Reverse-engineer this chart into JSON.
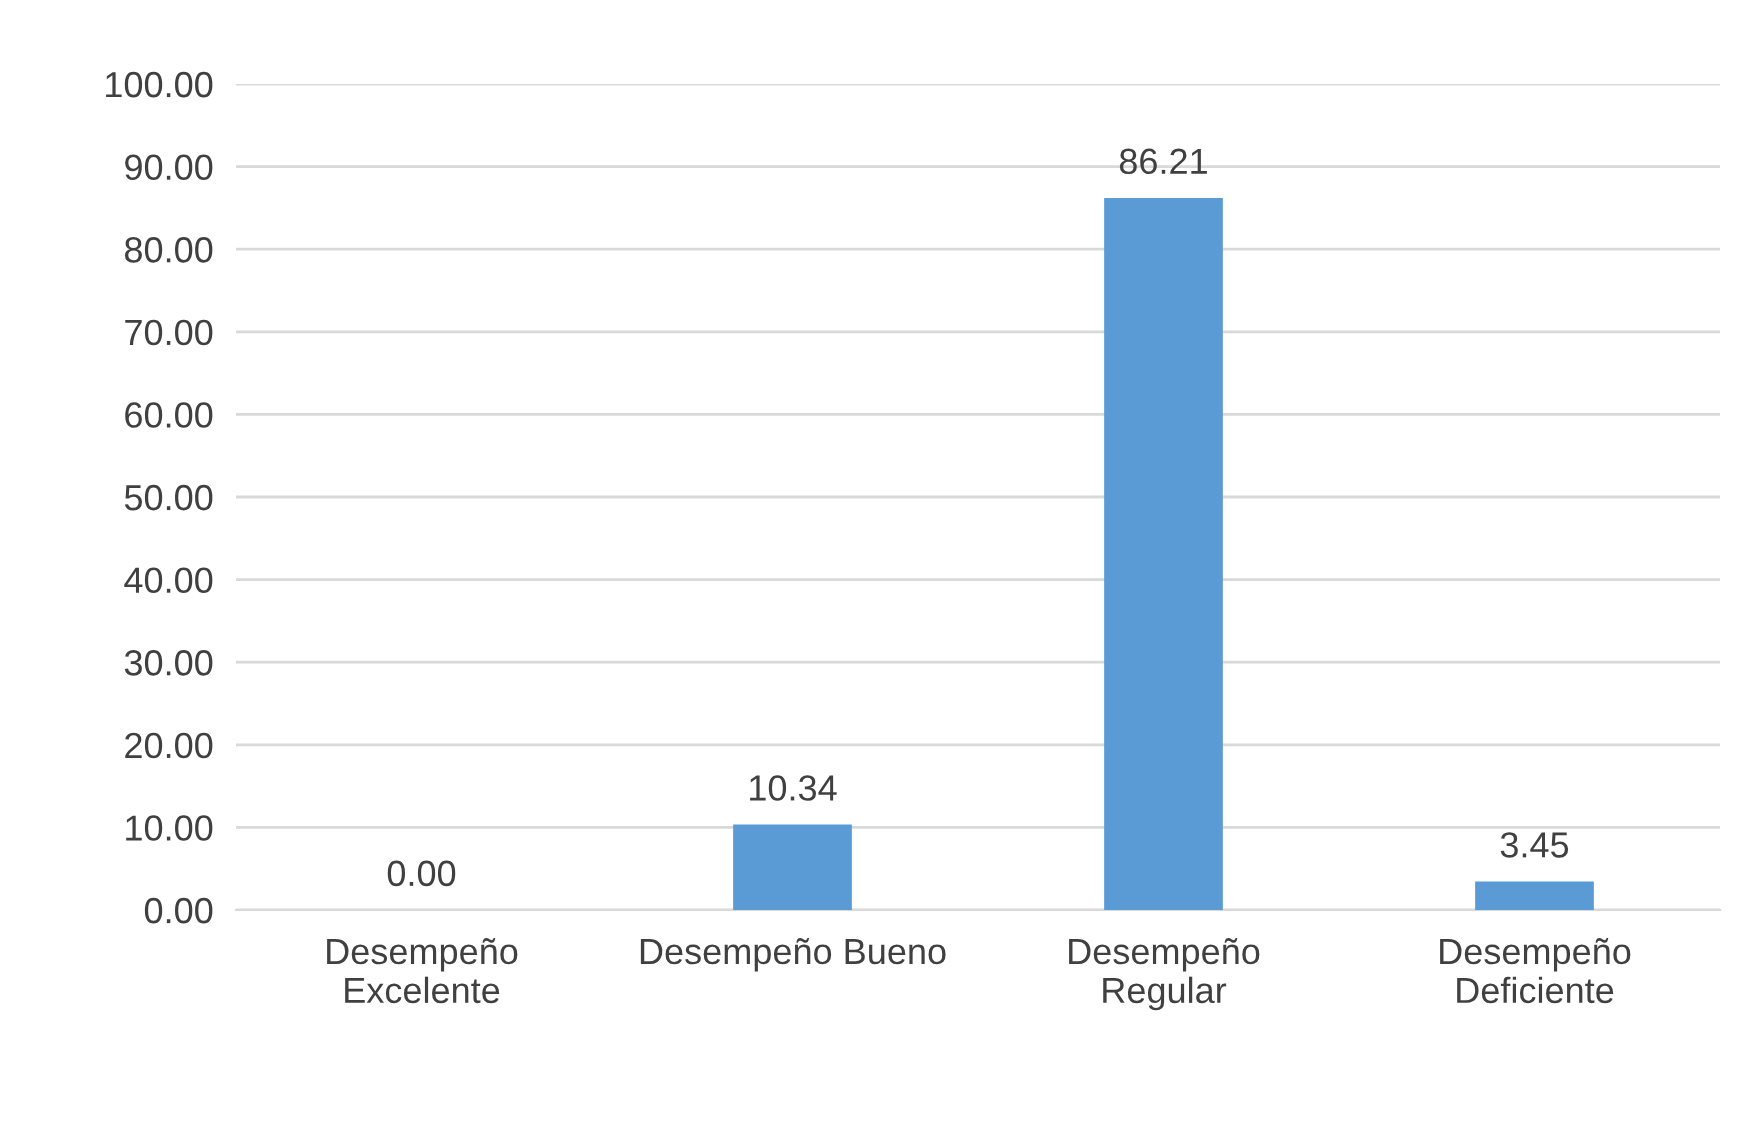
{
  "chart_data": {
    "type": "bar",
    "categories": [
      "Desempeño\nExcelente",
      "Desempeño Bueno",
      "Desempeño\nRegular",
      "Desempeño\nDeficiente"
    ],
    "values": [
      0.0,
      10.34,
      86.21,
      3.45
    ],
    "value_labels": [
      "0.00",
      "10.34",
      "86.21",
      "3.45"
    ],
    "color": "#5b9bd5",
    "ylim": [
      0,
      100
    ],
    "yticks": [
      {
        "value": 0,
        "label": "0.00"
      },
      {
        "value": 10,
        "label": "10.00"
      },
      {
        "value": 20,
        "label": "20.00"
      },
      {
        "value": 30,
        "label": "30.00"
      },
      {
        "value": 40,
        "label": "40.00"
      },
      {
        "value": 50,
        "label": "50.00"
      },
      {
        "value": 60,
        "label": "60.00"
      },
      {
        "value": 70,
        "label": "70.00"
      },
      {
        "value": 80,
        "label": "80.00"
      },
      {
        "value": 90,
        "label": "90.00"
      },
      {
        "value": 100,
        "label": "100.00"
      }
    ],
    "grid": "y"
  }
}
